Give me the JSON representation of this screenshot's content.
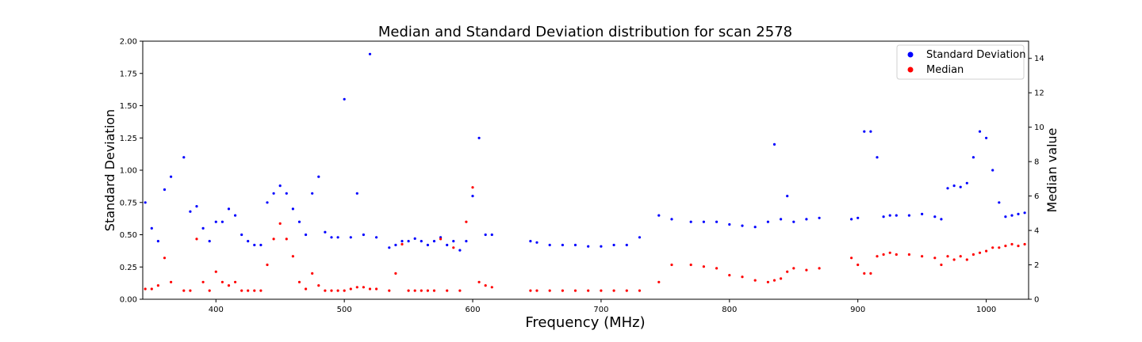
{
  "chart_data": {
    "type": "scatter",
    "title": "Median and Standard Deviation distribution for scan 2578",
    "xlabel": "Frequency (MHz)",
    "ylabel_left": "Standard Deviation",
    "ylabel_right": "Median value",
    "xlim": [
      343,
      1033
    ],
    "ylim_left": [
      0.0,
      2.0
    ],
    "ylim_right": [
      0,
      15
    ],
    "x_ticks": [
      400,
      500,
      600,
      700,
      800,
      900,
      1000
    ],
    "x_tick_labels": [
      "400",
      "500",
      "600",
      "700",
      "800",
      "900",
      "1000"
    ],
    "y_left_ticks": [
      0.0,
      0.25,
      0.5,
      0.75,
      1.0,
      1.25,
      1.5,
      1.75,
      2.0
    ],
    "y_left_tick_labels": [
      "0.00",
      "0.25",
      "0.50",
      "0.75",
      "1.00",
      "1.25",
      "1.50",
      "1.75",
      "2.00"
    ],
    "y_right_ticks": [
      0,
      2,
      4,
      6,
      8,
      10,
      12,
      14
    ],
    "y_right_tick_labels": [
      "0",
      "2",
      "4",
      "6",
      "8",
      "10",
      "12",
      "14"
    ],
    "legend_position": "top-right",
    "grid": false,
    "colors": {
      "std": "#0000ff",
      "median": "#ff0000"
    },
    "series": [
      {
        "name": "Standard Deviation",
        "axis": "left",
        "color": "#0000ff",
        "x": [
          345,
          350,
          355,
          360,
          365,
          375,
          380,
          385,
          390,
          395,
          400,
          405,
          410,
          415,
          420,
          425,
          430,
          435,
          440,
          445,
          450,
          455,
          460,
          465,
          470,
          475,
          480,
          485,
          490,
          495,
          500,
          505,
          510,
          515,
          520,
          525,
          535,
          540,
          545,
          550,
          555,
          560,
          565,
          570,
          575,
          580,
          585,
          590,
          595,
          600,
          605,
          610,
          615,
          645,
          650,
          660,
          670,
          680,
          690,
          700,
          710,
          720,
          730,
          745,
          755,
          770,
          780,
          790,
          800,
          810,
          820,
          830,
          835,
          840,
          845,
          850,
          860,
          870,
          895,
          900,
          905,
          910,
          915,
          920,
          925,
          930,
          940,
          950,
          960,
          965,
          970,
          975,
          980,
          985,
          990,
          995,
          1000,
          1005,
          1010,
          1015,
          1020,
          1025,
          1030
        ],
        "y": [
          0.75,
          0.55,
          0.45,
          0.85,
          0.95,
          1.1,
          0.68,
          0.72,
          0.55,
          0.45,
          0.6,
          0.6,
          0.7,
          0.65,
          0.5,
          0.45,
          0.42,
          0.42,
          0.75,
          0.82,
          0.88,
          0.82,
          0.7,
          0.6,
          0.5,
          0.82,
          0.95,
          0.52,
          0.48,
          0.48,
          1.55,
          0.48,
          0.82,
          0.5,
          1.9,
          0.48,
          0.4,
          0.42,
          0.45,
          0.45,
          0.47,
          0.45,
          0.42,
          0.45,
          0.48,
          0.42,
          0.45,
          0.38,
          0.45,
          0.8,
          1.25,
          0.5,
          0.5,
          0.45,
          0.44,
          0.42,
          0.42,
          0.42,
          0.41,
          0.41,
          0.42,
          0.42,
          0.48,
          0.65,
          0.62,
          0.6,
          0.6,
          0.6,
          0.58,
          0.57,
          0.56,
          0.6,
          1.2,
          0.62,
          0.8,
          0.6,
          0.62,
          0.63,
          0.62,
          0.63,
          1.3,
          1.3,
          1.1,
          0.64,
          0.65,
          0.65,
          0.65,
          0.66,
          0.64,
          0.62,
          0.86,
          0.88,
          0.87,
          0.9,
          1.1,
          1.3,
          1.25,
          1.0,
          0.75,
          0.64,
          0.65,
          0.66,
          0.67
        ]
      },
      {
        "name": "Median",
        "axis": "right",
        "color": "#ff0000",
        "x": [
          345,
          350,
          355,
          360,
          365,
          375,
          380,
          385,
          390,
          395,
          400,
          405,
          410,
          415,
          420,
          425,
          430,
          435,
          440,
          445,
          450,
          455,
          460,
          465,
          470,
          475,
          480,
          485,
          490,
          495,
          500,
          505,
          510,
          515,
          520,
          525,
          535,
          540,
          545,
          550,
          555,
          560,
          565,
          570,
          575,
          580,
          585,
          590,
          595,
          600,
          605,
          610,
          615,
          645,
          650,
          660,
          670,
          680,
          690,
          700,
          710,
          720,
          730,
          745,
          755,
          770,
          780,
          790,
          800,
          810,
          820,
          830,
          835,
          840,
          845,
          850,
          860,
          870,
          895,
          900,
          905,
          910,
          915,
          920,
          925,
          930,
          940,
          950,
          960,
          965,
          970,
          975,
          980,
          985,
          990,
          995,
          1000,
          1005,
          1010,
          1015,
          1020,
          1025,
          1030
        ],
        "y": [
          0.6,
          0.6,
          0.8,
          2.4,
          1.0,
          0.5,
          0.5,
          3.5,
          1.0,
          0.5,
          1.6,
          1.0,
          0.8,
          1.0,
          0.5,
          0.5,
          0.5,
          0.5,
          2.0,
          3.5,
          4.4,
          3.5,
          2.5,
          1.0,
          0.6,
          1.5,
          0.8,
          0.5,
          0.5,
          0.5,
          0.5,
          0.6,
          0.7,
          0.7,
          0.6,
          0.6,
          0.5,
          1.5,
          3.2,
          0.5,
          0.5,
          0.5,
          0.5,
          0.5,
          3.5,
          0.5,
          3.0,
          0.5,
          4.5,
          6.5,
          1.0,
          0.8,
          0.7,
          0.5,
          0.5,
          0.5,
          0.5,
          0.5,
          0.5,
          0.5,
          0.5,
          0.5,
          0.5,
          1.0,
          2.0,
          2.0,
          1.9,
          1.8,
          1.4,
          1.3,
          1.1,
          1.0,
          1.1,
          1.2,
          1.6,
          1.8,
          1.7,
          1.8,
          2.4,
          2.0,
          1.5,
          1.5,
          2.5,
          2.6,
          2.7,
          2.6,
          2.6,
          2.5,
          2.4,
          2.0,
          2.5,
          2.3,
          2.5,
          2.3,
          2.6,
          2.7,
          2.8,
          3.0,
          3.0,
          3.1,
          3.2,
          3.1,
          3.2
        ]
      }
    ]
  }
}
